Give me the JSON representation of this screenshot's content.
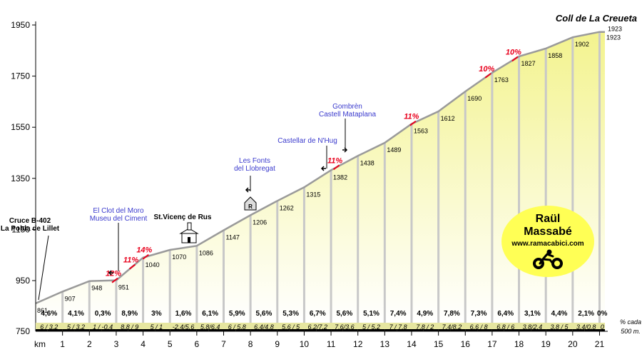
{
  "title": "Coll de La Creueta",
  "chart_data": {
    "type": "area",
    "title": "Coll de La Creueta",
    "xlabel": "km",
    "ylabel": "",
    "ylim": [
      750,
      1950
    ],
    "xlim": [
      0,
      21.2
    ],
    "yticks": [
      950,
      1150,
      1350,
      1550,
      1750,
      1950
    ],
    "yticks_lower": [
      "750"
    ],
    "xticks": [
      "1",
      "2",
      "3",
      "4",
      "5",
      "6",
      "7",
      "8",
      "9",
      "10",
      "11",
      "12",
      "13",
      "14",
      "15",
      "16",
      "17",
      "18",
      "19",
      "20",
      "21"
    ],
    "profile": [
      {
        "km": 0,
        "elev": 861,
        "label": "861"
      },
      {
        "km": 1,
        "elev": 907,
        "label": "907"
      },
      {
        "km": 2,
        "elev": 948,
        "label": "948"
      },
      {
        "km": 3,
        "elev": 951,
        "label": "951"
      },
      {
        "km": 4,
        "elev": 1040,
        "label": "1040"
      },
      {
        "km": 5,
        "elev": 1070,
        "label": "1070"
      },
      {
        "km": 6,
        "elev": 1086,
        "label": "1086"
      },
      {
        "km": 7,
        "elev": 1147,
        "label": "1147"
      },
      {
        "km": 8,
        "elev": 1206,
        "label": "1206"
      },
      {
        "km": 9,
        "elev": 1262,
        "label": "1262"
      },
      {
        "km": 10,
        "elev": 1315,
        "label": "1315"
      },
      {
        "km": 11,
        "elev": 1382,
        "label": "1382"
      },
      {
        "km": 12,
        "elev": 1438,
        "label": "1438"
      },
      {
        "km": 13,
        "elev": 1489,
        "label": "1489"
      },
      {
        "km": 14,
        "elev": 1563,
        "label": "1563"
      },
      {
        "km": 15,
        "elev": 1612,
        "label": "1612"
      },
      {
        "km": 16,
        "elev": 1690,
        "label": "1690"
      },
      {
        "km": 17,
        "elev": 1763,
        "label": "1763"
      },
      {
        "km": 18,
        "elev": 1827,
        "label": "1827"
      },
      {
        "km": 19,
        "elev": 1858,
        "label": "1858"
      },
      {
        "km": 20,
        "elev": 1902,
        "label": "1902"
      },
      {
        "km": 21,
        "elev": 1923,
        "label": "1923"
      },
      {
        "km": 21.2,
        "elev": 1923,
        "label": "1923"
      }
    ],
    "km_grades": [
      "4,6%",
      "4,1%",
      "0,3%",
      "8,9%",
      "3%",
      "1,6%",
      "6,1%",
      "5,9%",
      "5,6%",
      "5,3%",
      "6,7%",
      "5,6%",
      "5,1%",
      "7,4%",
      "4,9%",
      "7,8%",
      "7,3%",
      "6,4%",
      "3,1%",
      "4,4%",
      "2,1%",
      "0%"
    ],
    "half_km_grades": [
      "6 / 3,2",
      "5 / 3,2",
      "1 / -0,4",
      "8,8 / 9",
      "5 / 1",
      "-2,4/5,6",
      "5,8/6,4",
      "6 / 5,8",
      "6,4/4,8",
      "5,6 / 5",
      "6,2/7,2",
      "7,6/3,6",
      "5 / 5,2",
      "7 / 7,8",
      "7,8 / 2",
      "7,4/8,2",
      "6,6 / 8",
      "6,8 / 6",
      "3,8/2,4",
      "3,8 / 5",
      "3,4/0,8",
      "0"
    ],
    "peak_grades": [
      {
        "km": 2.95,
        "label": "12%"
      },
      {
        "km": 3.6,
        "label": "11%"
      },
      {
        "km": 4.1,
        "label": "14%"
      },
      {
        "km": 11.2,
        "label": "11%"
      },
      {
        "km": 14.05,
        "label": "11%"
      },
      {
        "km": 16.85,
        "label": "10%"
      },
      {
        "km": 17.85,
        "label": "10%"
      }
    ],
    "places": [
      {
        "km": 0,
        "lines": [
          "Cruce B-402",
          "La Pobla de Lillet"
        ],
        "color": "black"
      },
      {
        "km": 3.05,
        "lines": [
          "El Clot del Moro",
          "Museu del Ciment"
        ],
        "color": "blue"
      },
      {
        "km": 8.1,
        "lines": [
          "Les Fonts",
          "del Llobregat"
        ],
        "color": "blue"
      },
      {
        "km": 5.9,
        "lines": [
          "St.Vicenç de Rus"
        ],
        "color": "black"
      },
      {
        "km": 11.2,
        "lines": [
          "Castellar de N'Hug"
        ],
        "color": "blue"
      },
      {
        "km": 12.0,
        "lines": [
          "Gombrèn",
          "Castell Mataplana"
        ],
        "color": "blue"
      }
    ],
    "stats_note": [
      "% cada",
      "500 m."
    ]
  },
  "badge": {
    "name_line1": "Raül",
    "name_line2": "Massabé",
    "url": "www.ramacabici.com"
  },
  "colors": {
    "fill_top": "#f4f49a",
    "fill_bottom": "#ffffff",
    "divider": "#c8c8c8",
    "outline": "#9a9a9a",
    "strip": "#e6e6a0",
    "red": "#e8001c",
    "blue": "#3a3acd"
  }
}
